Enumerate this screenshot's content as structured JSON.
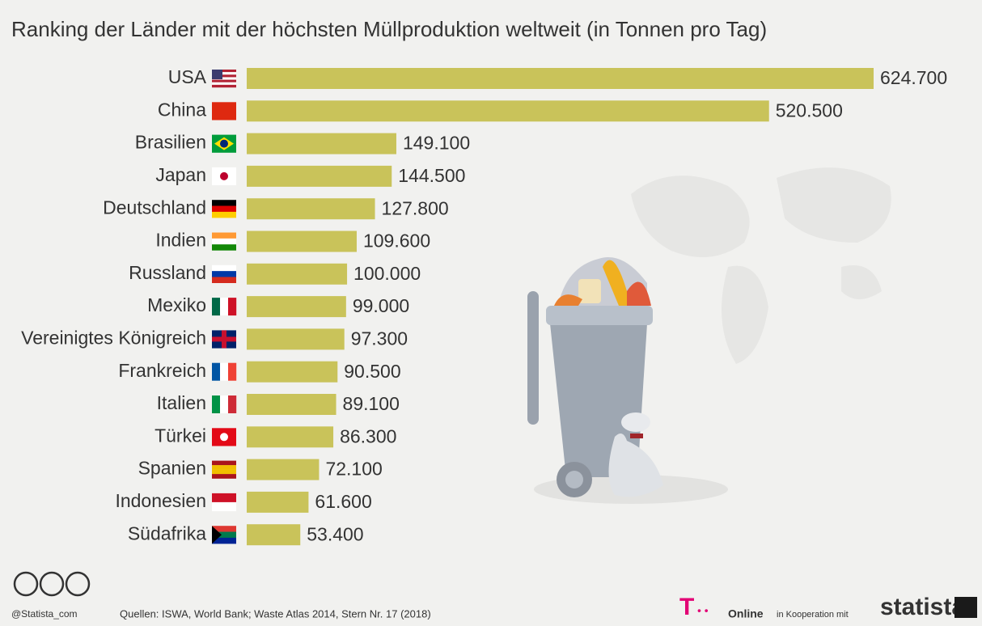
{
  "chart_data": {
    "type": "bar",
    "orientation": "horizontal",
    "title": "Ranking der Länder mit der höchsten Müllproduktion weltweit (in Tonnen pro Tag)",
    "categories": [
      "USA",
      "China",
      "Brasilien",
      "Japan",
      "Deutschland",
      "Indien",
      "Russland",
      "Mexiko",
      "Vereinigtes Königreich",
      "Frankreich",
      "Italien",
      "Türkei",
      "Spanien",
      "Indonesien",
      "Südafrika"
    ],
    "values": [
      624700,
      520500,
      149100,
      144500,
      127800,
      109600,
      100000,
      99000,
      97300,
      90500,
      89100,
      86300,
      72100,
      61600,
      53400
    ],
    "value_labels": [
      "624.700",
      "520.500",
      "149.100",
      "144.500",
      "127.800",
      "109.600",
      "100.000",
      "99.000",
      "97.300",
      "90.500",
      "89.100",
      "86.300",
      "72.100",
      "61.600",
      "53.400"
    ],
    "color": "#c9c35a",
    "credit": "@Statista_com",
    "source": "Quellen: ISWA, World Bank; Waste Atlas 2014, Stern Nr. 17 (2018)",
    "partner": "Online",
    "cooperation": "in Kooperation mit",
    "brand": "statista"
  }
}
